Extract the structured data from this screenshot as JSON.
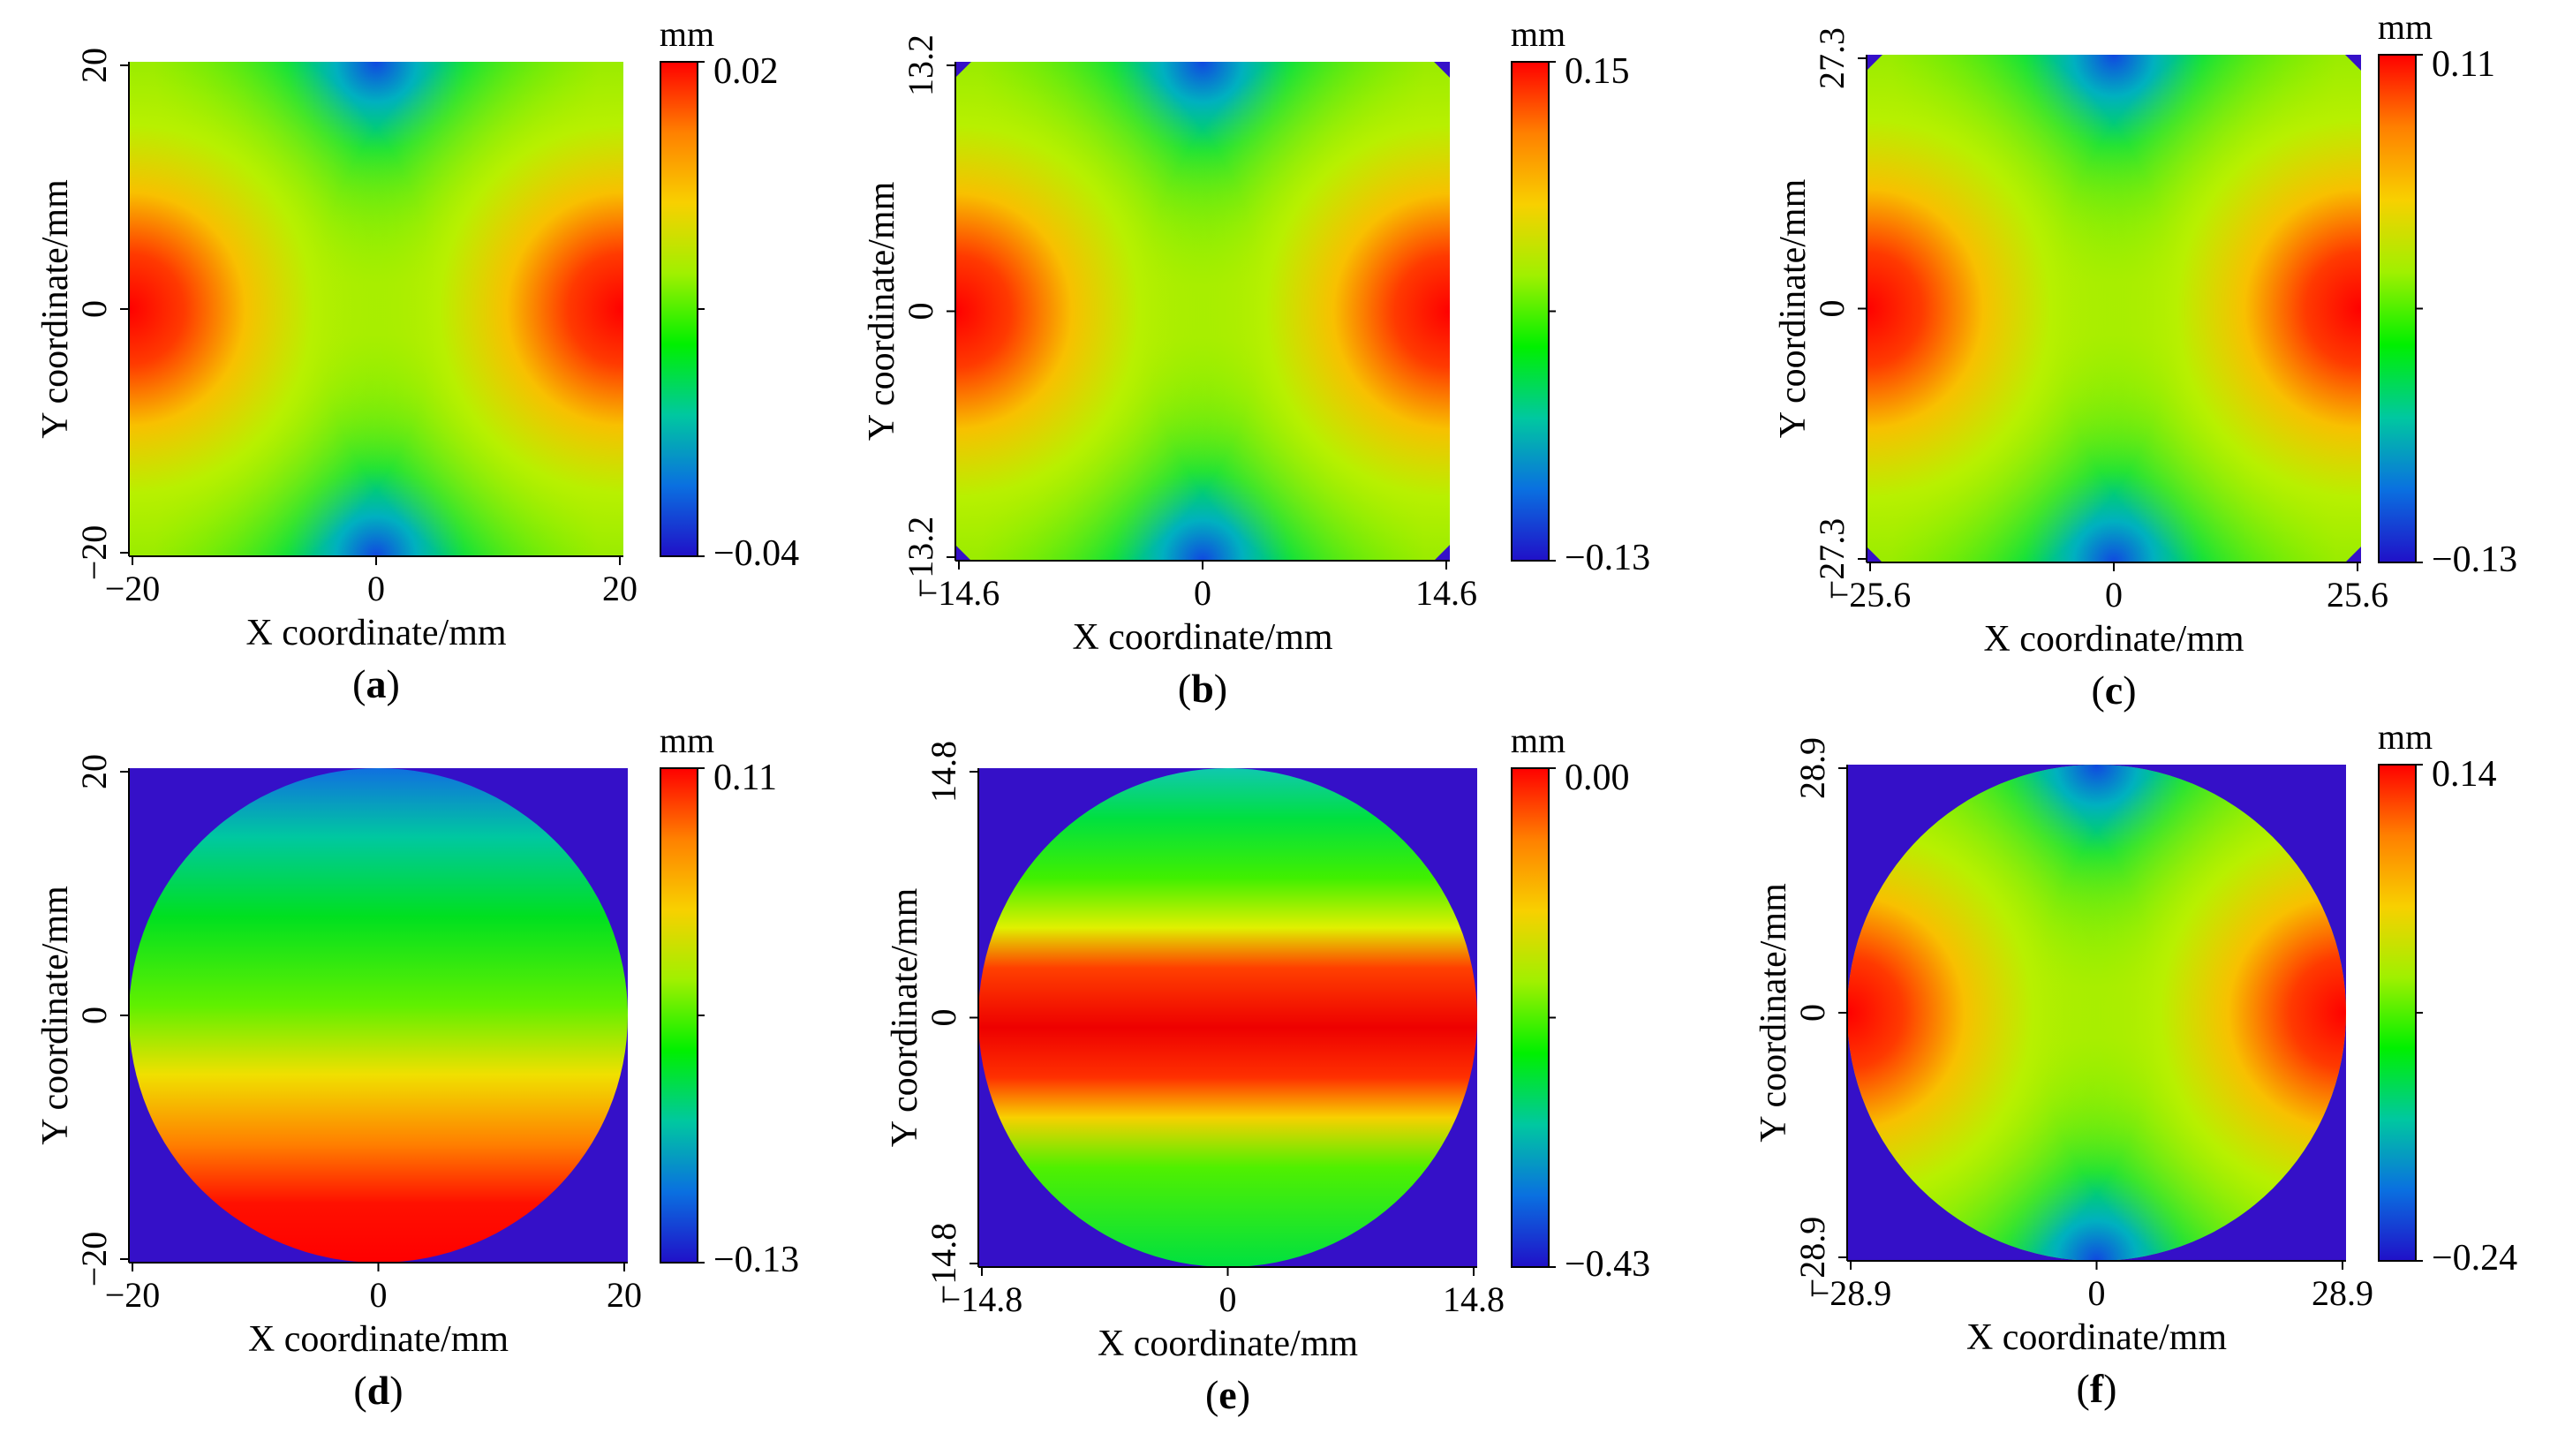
{
  "colorscale": [
    "#2010c8",
    "#0a70e0",
    "#00c8a0",
    "#00f000",
    "#a0f000",
    "#f8d000",
    "#ff8000",
    "#ff0000"
  ],
  "outside_color": "#3510c8",
  "chart_data": [
    {
      "type": "heatmap",
      "panel_label": "a",
      "title": "",
      "xlabel": "X coordinate/mm",
      "ylabel": "Y coordinate/mm",
      "x_ticks": [
        "−20",
        "0",
        "20"
      ],
      "y_ticks": [
        "−20",
        "0",
        "20"
      ],
      "xlim": [
        -20,
        20
      ],
      "ylim": [
        -20,
        20
      ],
      "colorbar": {
        "unit": "mm",
        "max": "0.02",
        "min": "−0.04"
      },
      "pattern": "saddle",
      "domain": "square",
      "corner_cut": false,
      "description_values": {
        "max": 0.02,
        "min": -0.04
      }
    },
    {
      "type": "heatmap",
      "panel_label": "b",
      "title": "",
      "xlabel": "X coordinate/mm",
      "ylabel": "Y coordinate/mm",
      "x_ticks": [
        "−14.6",
        "0",
        "14.6"
      ],
      "y_ticks": [
        "−13.2",
        "0",
        "13.2"
      ],
      "xlim": [
        -14.6,
        14.6
      ],
      "ylim": [
        -13.2,
        13.2
      ],
      "colorbar": {
        "unit": "mm",
        "max": "0.15",
        "min": "−0.13"
      },
      "pattern": "saddle",
      "domain": "square",
      "corner_cut": true,
      "description_values": {
        "max": 0.15,
        "min": -0.13
      }
    },
    {
      "type": "heatmap",
      "panel_label": "c",
      "title": "",
      "xlabel": "X coordinate/mm",
      "ylabel": "Y coordinate/mm",
      "x_ticks": [
        "−25.6",
        "0",
        "25.6"
      ],
      "y_ticks": [
        "−27.3",
        "0",
        "27.3"
      ],
      "xlim": [
        -25.6,
        25.6
      ],
      "ylim": [
        -27.3,
        27.3
      ],
      "colorbar": {
        "unit": "mm",
        "max": "0.11",
        "min": "−0.13"
      },
      "pattern": "saddle",
      "domain": "square",
      "corner_cut": true,
      "description_values": {
        "max": 0.11,
        "min": -0.13
      }
    },
    {
      "type": "heatmap",
      "panel_label": "d",
      "title": "",
      "xlabel": "X coordinate/mm",
      "ylabel": "Y coordinate/mm",
      "x_ticks": [
        "−20",
        "0",
        "20"
      ],
      "y_ticks": [
        "−20",
        "0",
        "20"
      ],
      "xlim": [
        -20,
        20
      ],
      "ylim": [
        -20,
        20
      ],
      "colorbar": {
        "unit": "mm",
        "max": "0.11",
        "min": "−0.13"
      },
      "pattern": "gradient",
      "domain": "circle",
      "corner_cut": false,
      "description_values": {
        "max": 0.11,
        "min": -0.13
      }
    },
    {
      "type": "heatmap",
      "panel_label": "e",
      "title": "",
      "xlabel": "X coordinate/mm",
      "ylabel": "Y coordinate/mm",
      "x_ticks": [
        "−14.8",
        "0",
        "14.8"
      ],
      "y_ticks": [
        "−14.8",
        "0",
        "14.8"
      ],
      "xlim": [
        -14.8,
        14.8
      ],
      "ylim": [
        -14.8,
        14.8
      ],
      "colorbar": {
        "unit": "mm",
        "max": "0.00",
        "min": "−0.43"
      },
      "pattern": "band",
      "domain": "circle",
      "corner_cut": false,
      "description_values": {
        "max": 0.0,
        "min": -0.43
      }
    },
    {
      "type": "heatmap",
      "panel_label": "f",
      "title": "",
      "xlabel": "X coordinate/mm",
      "ylabel": "Y coordinate/mm",
      "x_ticks": [
        "−28.9",
        "0",
        "28.9"
      ],
      "y_ticks": [
        "−28.9",
        "0",
        "28.9"
      ],
      "xlim": [
        -28.9,
        28.9
      ],
      "ylim": [
        -28.9,
        28.9
      ],
      "colorbar": {
        "unit": "mm",
        "max": "0.14",
        "min": "−0.24"
      },
      "pattern": "saddle",
      "domain": "circle",
      "corner_cut": false,
      "description_values": {
        "max": 0.14,
        "min": -0.24
      }
    }
  ]
}
